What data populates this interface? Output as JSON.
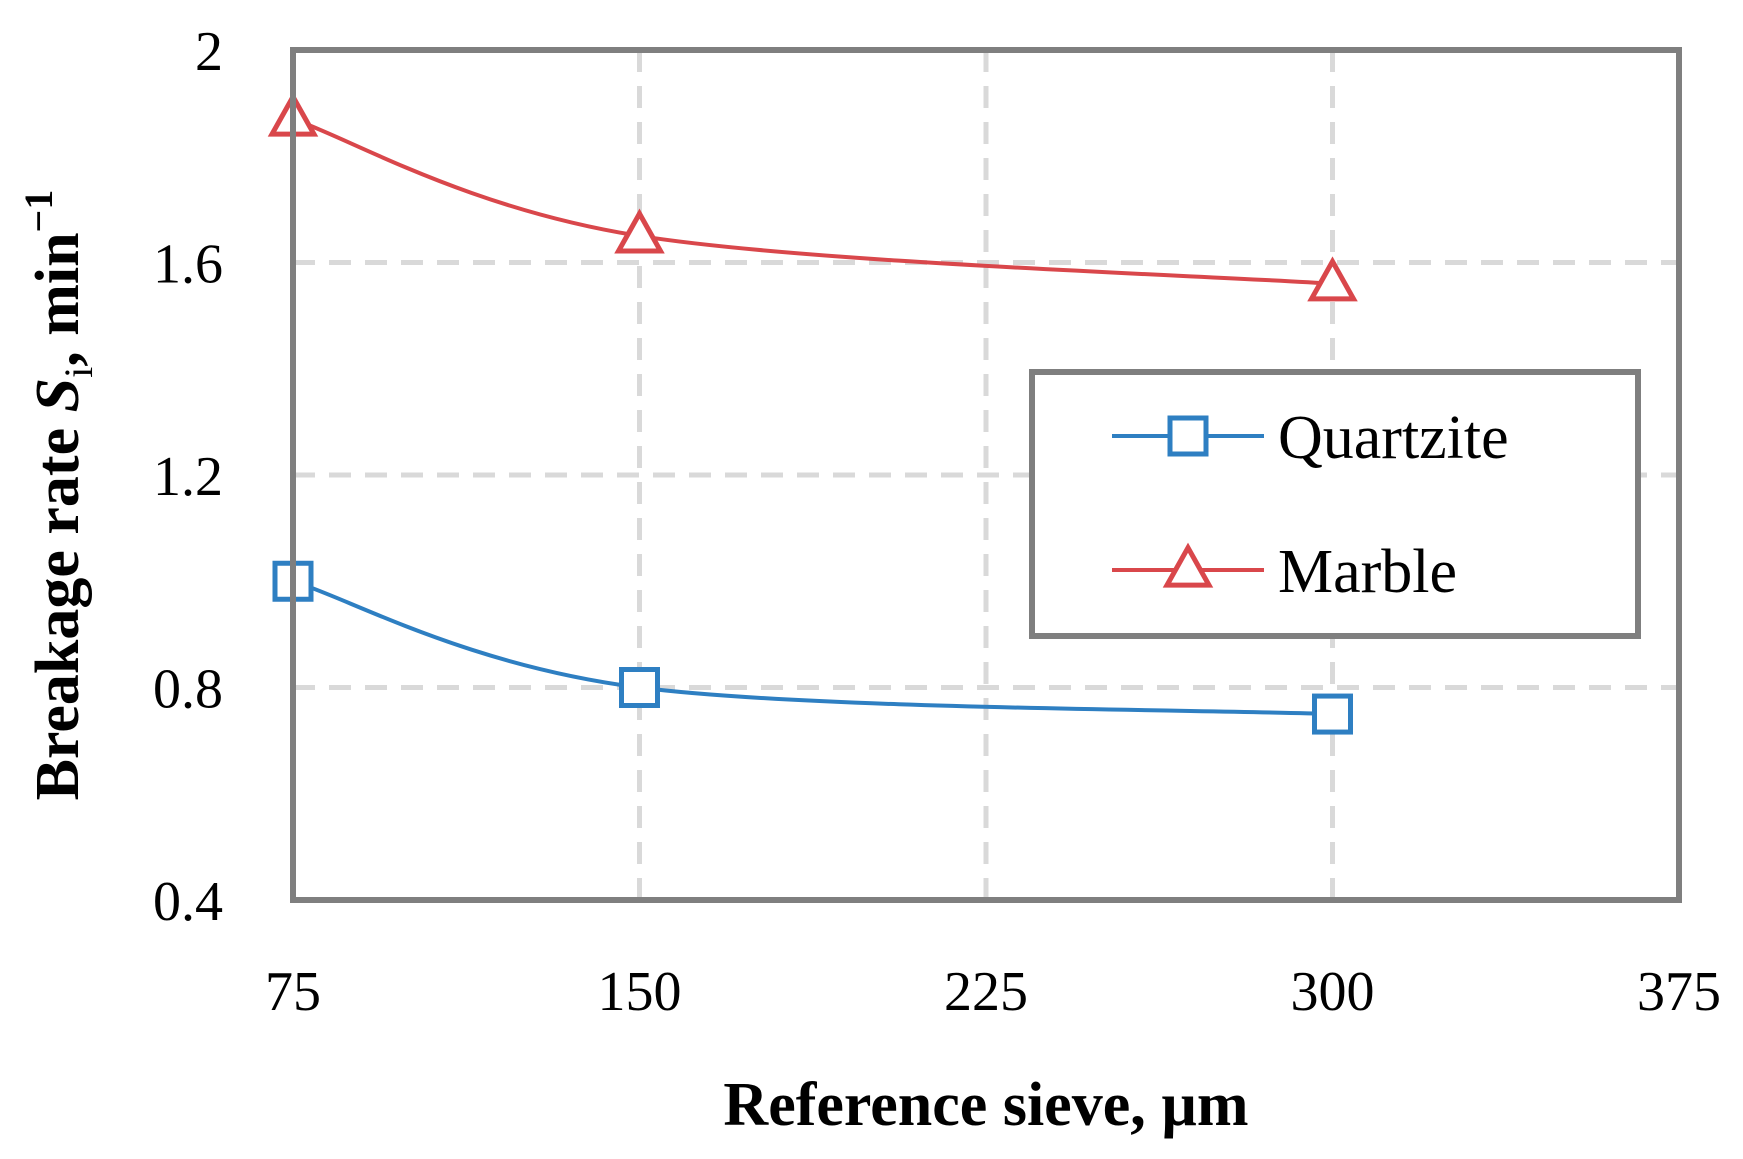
{
  "chart_data": {
    "type": "line",
    "title": "",
    "xlabel": "Reference sieve, µm",
    "ylabel": {
      "prefix": "Breakage rate ",
      "symbol": "S",
      "subscript": "i",
      "suffix": ", min",
      "superscript": "−1"
    },
    "xlim": [
      75,
      375
    ],
    "ylim": [
      0.4,
      2.0
    ],
    "x_ticks": [
      75,
      150,
      225,
      300,
      375
    ],
    "x_tick_labels": [
      "75",
      "150",
      "225",
      "300",
      "375"
    ],
    "y_ticks": [
      0.4,
      0.8,
      1.2,
      1.6,
      2.0
    ],
    "y_tick_labels": [
      "0.4",
      "0.8",
      "1.2",
      "1.6",
      "2"
    ],
    "grid": true,
    "legend_position": "center-right",
    "series": [
      {
        "name": "Quartzite",
        "color": "#2e7fc2",
        "marker": "square",
        "x": [
          75,
          150,
          300
        ],
        "y": [
          1.0,
          0.8,
          0.75
        ]
      },
      {
        "name": "Marble",
        "color": "#d9474b",
        "marker": "triangle",
        "x": [
          75,
          150,
          300
        ],
        "y": [
          1.87,
          1.65,
          1.56
        ]
      }
    ]
  },
  "colors": {
    "frame": "#7f7f7f",
    "grid": "#d9d9d9"
  }
}
